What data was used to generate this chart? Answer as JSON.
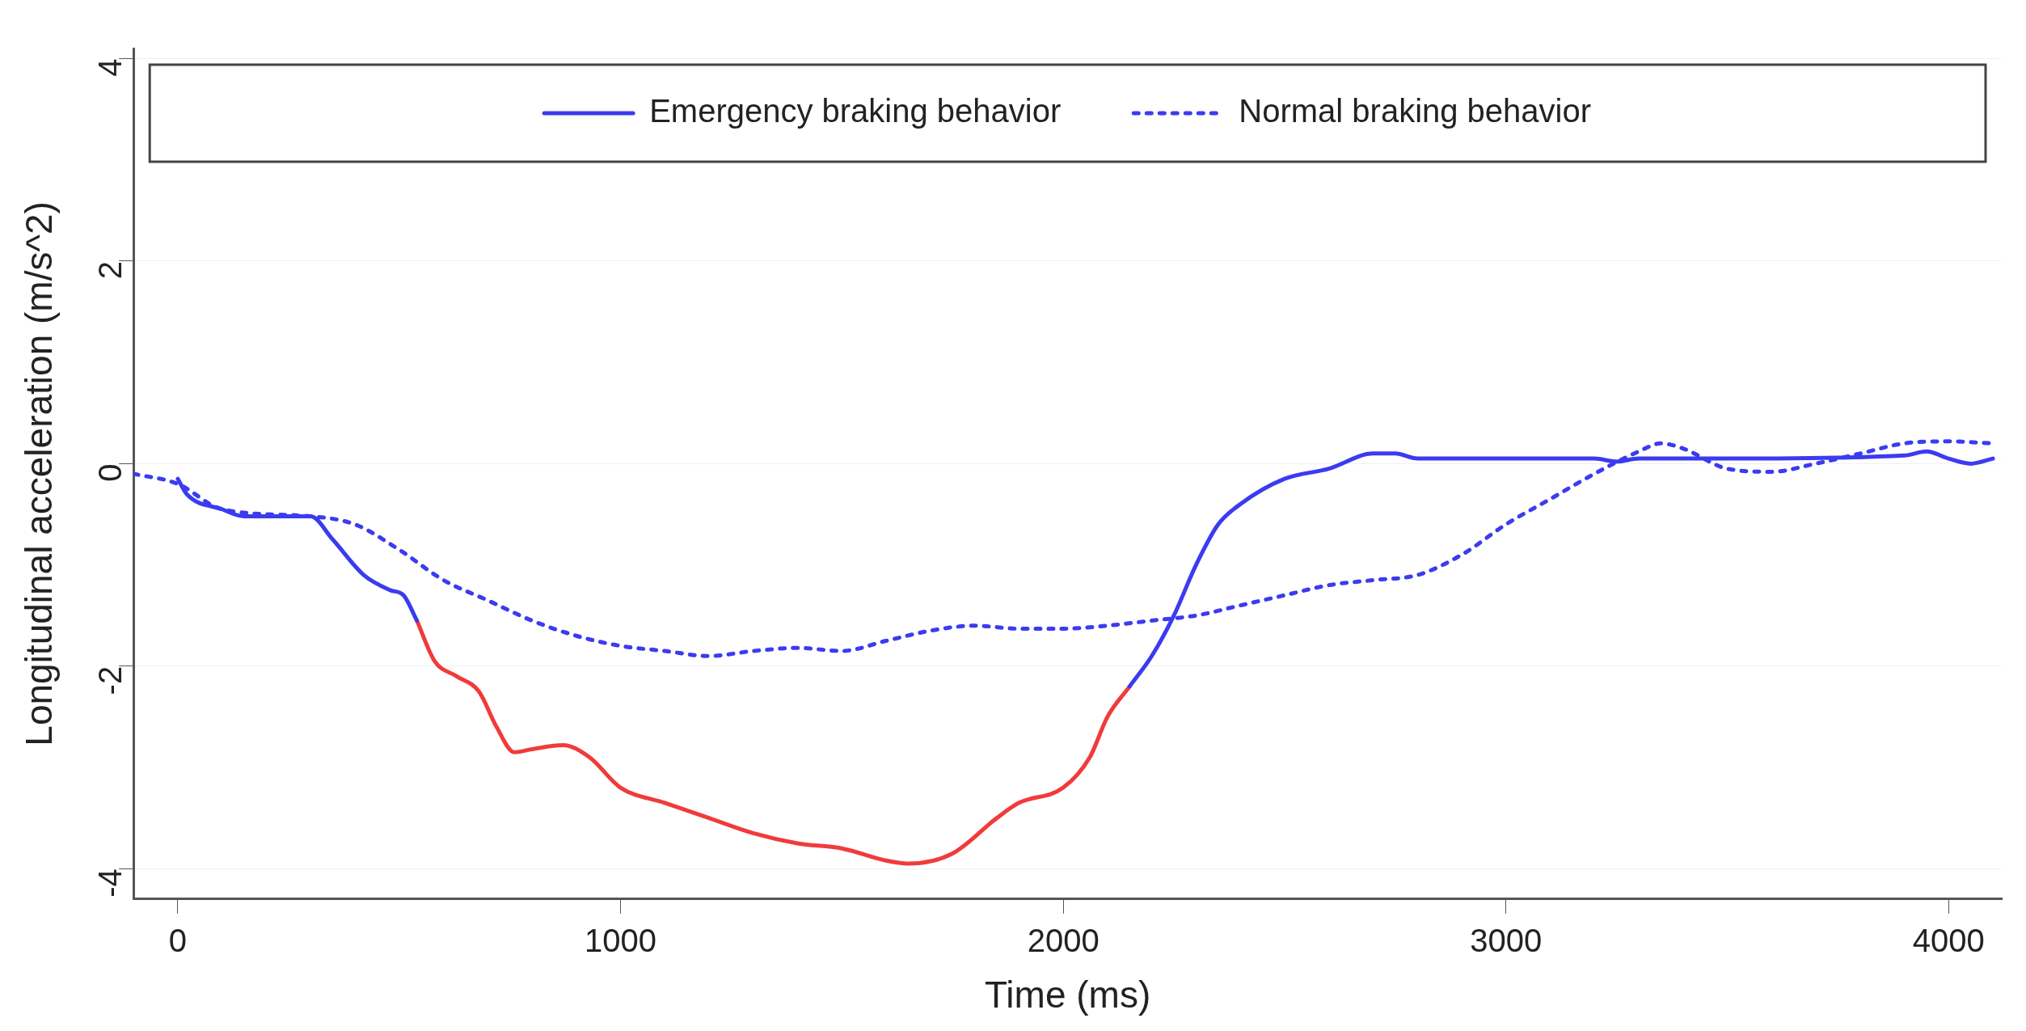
{
  "chart_data": {
    "type": "line",
    "xlabel": "Time (ms)",
    "ylabel": "Longitudinal acceleration (m/s^2)",
    "xlim": [
      -100,
      4120
    ],
    "xticks": [
      0,
      1000,
      2000,
      3000,
      4000
    ],
    "ylim": [
      -4.3,
      4.1
    ],
    "yticks": [
      -4,
      -2,
      0,
      2,
      4
    ],
    "grid": "y",
    "legend": "top",
    "marker": "none",
    "series": [
      {
        "name": "Emergency braking behavior",
        "color": "#3b3bf0",
        "line_style": "solid",
        "x": [
          0,
          20,
          100,
          150,
          300,
          350,
          420,
          480,
          510,
          540,
          2100,
          2150,
          2200,
          2250,
          2300,
          2350,
          2400,
          2500,
          2600,
          2700,
          2750,
          2800,
          3000,
          3200,
          3250,
          3300,
          3500,
          3900,
          3950,
          4000,
          4050,
          4100
        ],
        "values": [
          -0.15,
          -0.3,
          -0.45,
          -0.52,
          -0.52,
          -0.75,
          -1.1,
          -1.25,
          -1.3,
          -1.55,
          null,
          -2.2,
          -1.9,
          -1.5,
          -1.0,
          -0.6,
          -0.4,
          -0.15,
          -0.05,
          0.1,
          0.1,
          0.05,
          0.05,
          0.05,
          0.02,
          0.05,
          0.05,
          0.08,
          0.12,
          0.05,
          0.0,
          0.05
        ]
      },
      {
        "color": "#f03b3b",
        "line_style": "solid",
        "x": [
          540,
          580,
          630,
          680,
          720,
          760,
          800,
          870,
          930,
          1000,
          1100,
          1200,
          1300,
          1400,
          1500,
          1600,
          1650,
          1750,
          1850,
          1900,
          2000,
          2060,
          2100,
          2150
        ],
        "values": [
          -1.55,
          -1.95,
          -2.1,
          -2.25,
          -2.6,
          -2.85,
          -2.82,
          -2.78,
          -2.9,
          -3.2,
          -3.35,
          -3.5,
          -3.65,
          -3.75,
          -3.8,
          -3.92,
          -3.95,
          -3.85,
          -3.5,
          -3.35,
          -3.2,
          -2.9,
          -2.5,
          -2.2
        ]
      },
      {
        "name": "Normal braking behavior",
        "color": "#3b3bf0",
        "line_style": "dotted",
        "x": [
          -100,
          0,
          100,
          300,
          400,
          500,
          600,
          700,
          800,
          900,
          1000,
          1100,
          1200,
          1300,
          1400,
          1500,
          1600,
          1700,
          1800,
          1900,
          2000,
          2100,
          2200,
          2300,
          2400,
          2500,
          2600,
          2700,
          2800,
          2900,
          3000,
          3100,
          3200,
          3300,
          3350,
          3400,
          3500,
          3600,
          3700,
          3800,
          3900,
          4000,
          4100
        ],
        "values": [
          -0.1,
          -0.2,
          -0.45,
          -0.52,
          -0.6,
          -0.85,
          -1.15,
          -1.35,
          -1.55,
          -1.7,
          -1.8,
          -1.85,
          -1.9,
          -1.85,
          -1.82,
          -1.85,
          -1.75,
          -1.65,
          -1.6,
          -1.63,
          -1.63,
          -1.6,
          -1.55,
          -1.5,
          -1.4,
          -1.3,
          -1.2,
          -1.15,
          -1.1,
          -0.9,
          -0.6,
          -0.35,
          -0.1,
          0.12,
          0.2,
          0.15,
          -0.05,
          -0.08,
          0.0,
          0.1,
          0.2,
          0.22,
          0.2
        ]
      }
    ]
  }
}
